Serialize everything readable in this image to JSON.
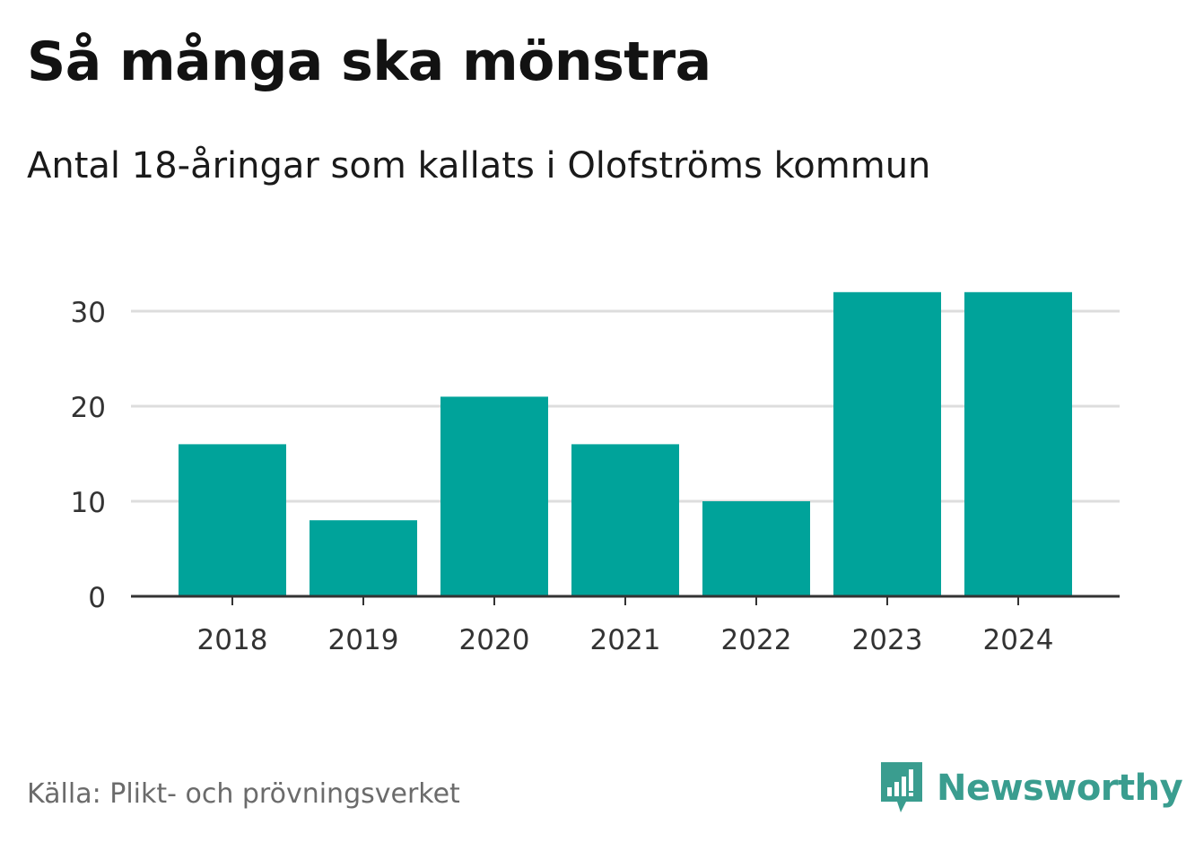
{
  "header": {
    "title": "Så många ska mönstra",
    "subtitle": "Antal 18-åringar som kallats i Olofströms kommun"
  },
  "footer": {
    "source": "Källa: Plikt- och prövningsverket",
    "brand": "Newsworthy",
    "brand_icon": "bar-chart-speech-bubble-icon"
  },
  "colors": {
    "bar": "#00a39a",
    "grid": "#dddddd",
    "axis": "#333333",
    "brand": "#3a9d8f"
  },
  "chart_data": {
    "type": "bar",
    "title": "Så många ska mönstra",
    "subtitle": "Antal 18-åringar som kallats i Olofströms kommun",
    "categories": [
      "2018",
      "2019",
      "2020",
      "2021",
      "2022",
      "2023",
      "2024"
    ],
    "values": [
      16,
      8,
      21,
      16,
      10,
      32,
      32
    ],
    "xlabel": "",
    "ylabel": "",
    "ylim": [
      0,
      33
    ],
    "yticks": [
      0,
      10,
      20,
      30
    ],
    "grid": true,
    "legend": "none"
  }
}
